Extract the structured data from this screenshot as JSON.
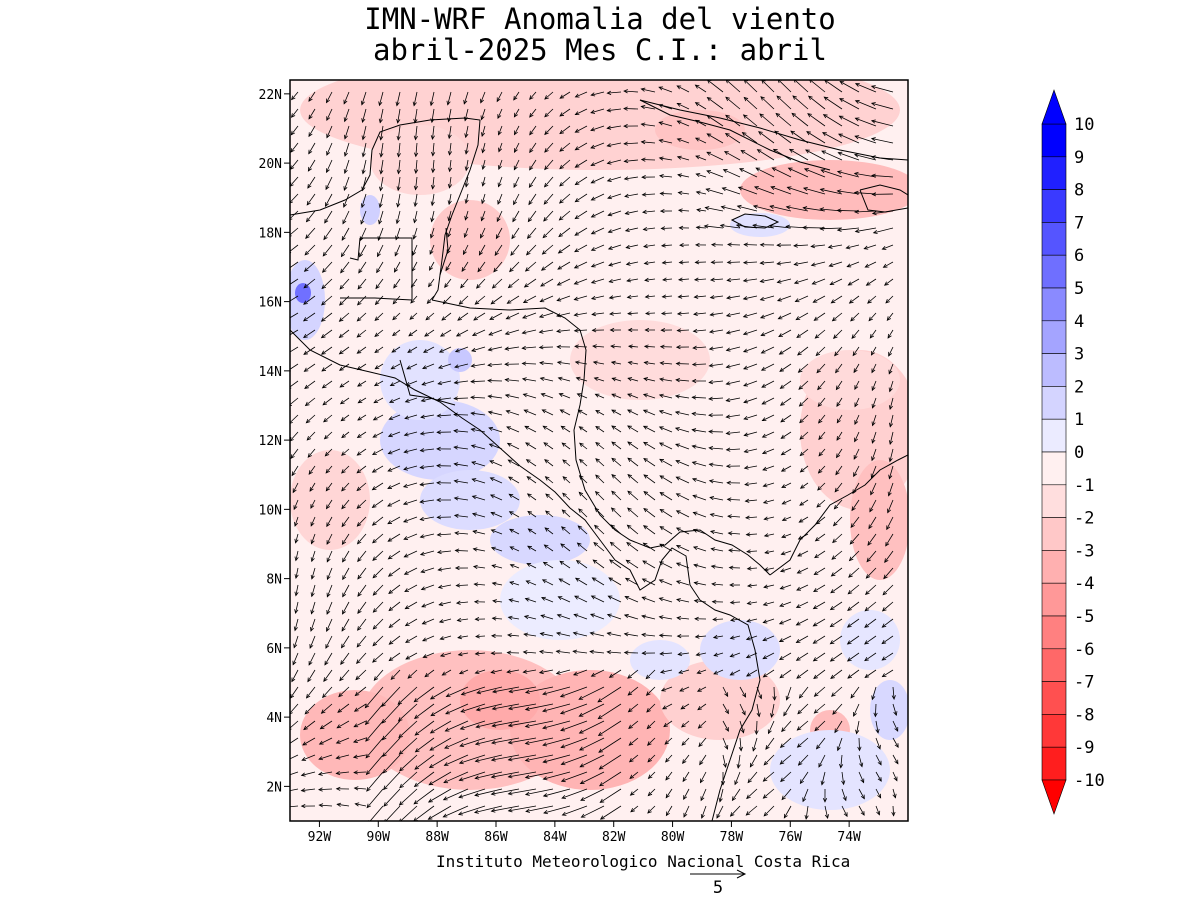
{
  "title": {
    "line1": "IMN-WRF Anomalia del viento",
    "line2": "abril-2025 Mes C.I.: abril"
  },
  "credit": "Instituto Meteorologico Nacional Costa Rica",
  "reference_vector": {
    "label": "5",
    "magnitude": 5
  },
  "map": {
    "lon_range": [
      -93,
      -72
    ],
    "lat_range": [
      1,
      22.4
    ],
    "lat_ticks": [
      "22N",
      "20N",
      "18N",
      "16N",
      "14N",
      "12N",
      "10N",
      "8N",
      "6N",
      "4N",
      "2N"
    ],
    "lon_ticks": [
      "92W",
      "90W",
      "88W",
      "86W",
      "84W",
      "82W",
      "80W",
      "78W",
      "76W",
      "74W"
    ]
  },
  "colorbar": {
    "labels": [
      "10",
      "9",
      "8",
      "7",
      "6",
      "5",
      "4",
      "3",
      "2",
      "1",
      "0",
      "-1",
      "-2",
      "-3",
      "-4",
      "-5",
      "-6",
      "-7",
      "-8",
      "-9",
      "-10"
    ],
    "colors": [
      "#0000ff",
      "#2020ff",
      "#3a3aff",
      "#5555ff",
      "#6f6fff",
      "#8a8aff",
      "#a4a4ff",
      "#bcbcff",
      "#d4d4ff",
      "#ebebff",
      "#fff0f0",
      "#ffdede",
      "#ffc8c8",
      "#ffb0b0",
      "#ff9898",
      "#ff8080",
      "#ff6868",
      "#ff5050",
      "#ff3838",
      "#ff1e1e"
    ],
    "top_arrow_color": "#0000ff",
    "bottom_arrow_color": "#ff0000"
  }
}
